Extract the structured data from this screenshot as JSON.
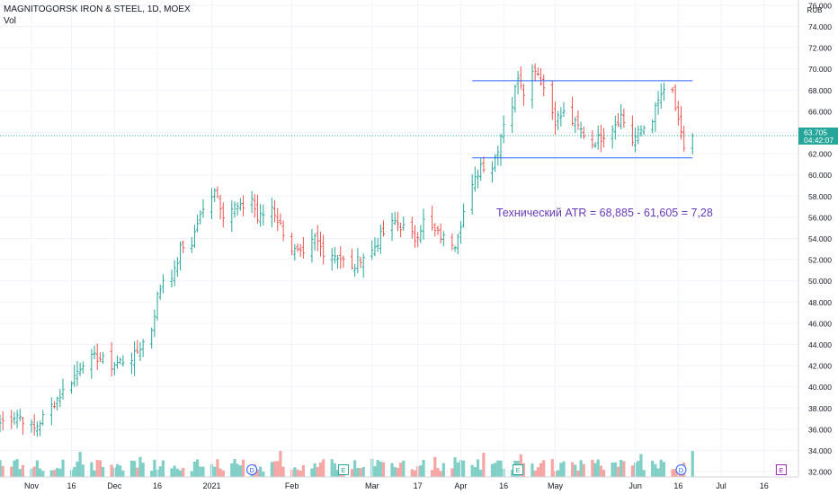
{
  "header": {
    "symbol_line": "MAGNITOGORSK IRON & STEEL, 1D, MOEX",
    "volume_label": "Vol"
  },
  "price_axis": {
    "currency": "RUB",
    "last_price": "63.705",
    "countdown": "04:42:07"
  },
  "annotation_text": "Технический ATR = 68,885 - 61,605 = 7,28",
  "event_markers": [
    {
      "label": "D",
      "date": "2021-01-18"
    },
    {
      "label": "E",
      "date": "2021-02-19"
    },
    {
      "label": "E",
      "date": "2021-04-21"
    },
    {
      "label": "D",
      "date": "2021-06-17"
    },
    {
      "label": "E",
      "date": "2021-07-22"
    }
  ],
  "colors": {
    "up": "#26a69a",
    "down": "#ef5350",
    "volume_up": "#7fcfc7",
    "volume_down": "#f5a6a4",
    "range_lines": "#2962ff",
    "annotation": "#673ab7",
    "last_price_tag": "#26a69a",
    "grid": "#f0f3fa"
  },
  "chart_data": {
    "type": "ohlc",
    "title": "MAGNITOGORSK IRON & STEEL, 1D, MOEX",
    "y_axis": {
      "unit": "RUB",
      "range": [
        31.5,
        76.5
      ],
      "ticks": [
        "32.000",
        "34.000",
        "36.000",
        "38.000",
        "40.000",
        "42.000",
        "44.000",
        "46.000",
        "48.000",
        "50.000",
        "52.000",
        "54.000",
        "56.000",
        "58.000",
        "60.000",
        "62.000",
        "64.000",
        "66.000",
        "68.000",
        "70.000",
        "72.000",
        "74.000",
        "76.000"
      ]
    },
    "x_axis": {
      "range": [
        "2020-10-22",
        "2021-07-28"
      ],
      "ticks": [
        {
          "label": "Nov",
          "date": "2020-11-02"
        },
        {
          "label": "16",
          "date": "2020-11-16"
        },
        {
          "label": "Dec",
          "date": "2020-12-01"
        },
        {
          "label": "16",
          "date": "2020-12-16"
        },
        {
          "label": "2021",
          "date": "2021-01-04"
        },
        {
          "label": "Feb",
          "date": "2021-02-01"
        },
        {
          "label": "Mar",
          "date": "2021-03-01"
        },
        {
          "label": "17",
          "date": "2021-03-17"
        },
        {
          "label": "Apr",
          "date": "2021-04-01"
        },
        {
          "label": "16",
          "date": "2021-04-16"
        },
        {
          "label": "May",
          "date": "2021-05-04"
        },
        {
          "label": "Jun",
          "date": "2021-06-01"
        },
        {
          "label": "16",
          "date": "2021-06-16"
        },
        {
          "label": "Jul",
          "date": "2021-07-01"
        },
        {
          "label": "16",
          "date": "2021-07-16"
        }
      ]
    },
    "grid": true,
    "last_price": 63.705,
    "range_lines": [
      {
        "value": 68.885,
        "from": "2021-04-05",
        "to": "2021-06-21"
      },
      {
        "value": 61.605,
        "from": "2021-04-05",
        "to": "2021-06-21"
      }
    ],
    "close_path": [
      {
        "date": "2020-10-22",
        "close": 36.6
      },
      {
        "date": "2020-10-28",
        "close": 37.4
      },
      {
        "date": "2020-11-03",
        "close": 36.0
      },
      {
        "date": "2020-11-09",
        "close": 38.2
      },
      {
        "date": "2020-11-13",
        "close": 39.6
      },
      {
        "date": "2020-11-17",
        "close": 41.0
      },
      {
        "date": "2020-11-20",
        "close": 42.4
      },
      {
        "date": "2020-11-25",
        "close": 42.8
      },
      {
        "date": "2020-11-30",
        "close": 42.0
      },
      {
        "date": "2020-12-04",
        "close": 42.5
      },
      {
        "date": "2020-12-08",
        "close": 42.9
      },
      {
        "date": "2020-12-11",
        "close": 44.2
      },
      {
        "date": "2020-12-14",
        "close": 45.5
      },
      {
        "date": "2020-12-16",
        "close": 48.5
      },
      {
        "date": "2020-12-18",
        "close": 50.2
      },
      {
        "date": "2020-12-22",
        "close": 50.8
      },
      {
        "date": "2020-12-24",
        "close": 53.0
      },
      {
        "date": "2020-12-28",
        "close": 53.6
      },
      {
        "date": "2020-12-30",
        "close": 55.5
      },
      {
        "date": "2021-01-05",
        "close": 58.8
      },
      {
        "date": "2021-01-08",
        "close": 56.4
      },
      {
        "date": "2021-01-12",
        "close": 57.0
      },
      {
        "date": "2021-01-14",
        "close": 56.8
      },
      {
        "date": "2021-01-18",
        "close": 57.8
      },
      {
        "date": "2021-01-20",
        "close": 55.8
      },
      {
        "date": "2021-01-25",
        "close": 57.0
      },
      {
        "date": "2021-01-28",
        "close": 55.2
      },
      {
        "date": "2021-02-01",
        "close": 53.0
      },
      {
        "date": "2021-02-05",
        "close": 52.2
      },
      {
        "date": "2021-02-09",
        "close": 54.0
      },
      {
        "date": "2021-02-12",
        "close": 52.8
      },
      {
        "date": "2021-02-17",
        "close": 52.4
      },
      {
        "date": "2021-02-22",
        "close": 51.0
      },
      {
        "date": "2021-02-25",
        "close": 52.2
      },
      {
        "date": "2021-03-01",
        "close": 52.8
      },
      {
        "date": "2021-03-04",
        "close": 54.2
      },
      {
        "date": "2021-03-09",
        "close": 55.6
      },
      {
        "date": "2021-03-12",
        "close": 55.0
      },
      {
        "date": "2021-03-16",
        "close": 54.0
      },
      {
        "date": "2021-03-19",
        "close": 55.6
      },
      {
        "date": "2021-03-23",
        "close": 54.6
      },
      {
        "date": "2021-03-26",
        "close": 54.0
      },
      {
        "date": "2021-03-30",
        "close": 53.6
      },
      {
        "date": "2021-04-02",
        "close": 56.5
      },
      {
        "date": "2021-04-06",
        "close": 59.5
      },
      {
        "date": "2021-04-08",
        "close": 61.0
      },
      {
        "date": "2021-04-12",
        "close": 60.8
      },
      {
        "date": "2021-04-14",
        "close": 62.6
      },
      {
        "date": "2021-04-16",
        "close": 65.0
      },
      {
        "date": "2021-04-19",
        "close": 66.6
      },
      {
        "date": "2021-04-21",
        "close": 69.5
      },
      {
        "date": "2021-04-23",
        "close": 68.0
      },
      {
        "date": "2021-04-27",
        "close": 70.2
      },
      {
        "date": "2021-04-29",
        "close": 69.0
      },
      {
        "date": "2021-05-04",
        "close": 65.2
      },
      {
        "date": "2021-05-07",
        "close": 65.8
      },
      {
        "date": "2021-05-12",
        "close": 64.5
      },
      {
        "date": "2021-05-17",
        "close": 63.0
      },
      {
        "date": "2021-05-20",
        "close": 63.6
      },
      {
        "date": "2021-05-24",
        "close": 64.6
      },
      {
        "date": "2021-05-27",
        "close": 65.6
      },
      {
        "date": "2021-05-31",
        "close": 63.2
      },
      {
        "date": "2021-06-03",
        "close": 64.2
      },
      {
        "date": "2021-06-07",
        "close": 65.4
      },
      {
        "date": "2021-06-10",
        "close": 67.6
      },
      {
        "date": "2021-06-14",
        "close": 67.8
      },
      {
        "date": "2021-06-16",
        "close": 64.8
      },
      {
        "date": "2021-06-18",
        "close": 62.6
      },
      {
        "date": "2021-06-21",
        "close": 63.7
      }
    ]
  }
}
